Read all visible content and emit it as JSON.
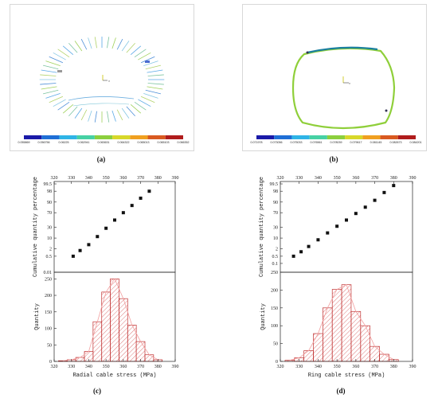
{
  "panels": {
    "a": {
      "label": "(a)",
      "colorbar_ticks": [
        "0.055869",
        "0.056756",
        "0.06225",
        "0.062941",
        "0.063631",
        "0.064322",
        "0.065013",
        "0.065103",
        "0.066352"
      ]
    },
    "b": {
      "label": "(b)",
      "colorbar_ticks": [
        "0.071978",
        "0.073056",
        "0.075033",
        "0.076561",
        "0.078039",
        "0.079617",
        "0.081145",
        "0.082673",
        "0.084201"
      ]
    },
    "c": {
      "label": "(c)"
    },
    "d": {
      "label": "(d)"
    }
  },
  "colorbar_colors": [
    "#1a1aa8",
    "#1f6fd6",
    "#2fb4e6",
    "#47d1a4",
    "#8ccf3e",
    "#d8d82a",
    "#f0a020",
    "#d95a20",
    "#b01c1c"
  ],
  "ring_colors": {
    "main": "#8fcf3a",
    "accent": "#1a7f9e"
  },
  "chart_data": [
    {
      "type": "scatter",
      "panel": "c-top",
      "x_top_ticks": [
        "320",
        "330",
        "340",
        "350",
        "360",
        "370",
        "380",
        "390"
      ],
      "y_tick_labels": [
        "0.01",
        "0.5",
        "2",
        "10",
        "30",
        "70",
        "90",
        "98",
        "99.5"
      ],
      "ylabel": "Cumulative quantity percentage",
      "xlim": [
        320,
        390
      ],
      "y_scale": "probability",
      "points": [
        {
          "x": 331,
          "y": 0.5
        },
        {
          "x": 335,
          "y": 1.5
        },
        {
          "x": 340,
          "y": 4
        },
        {
          "x": 345,
          "y": 12
        },
        {
          "x": 350,
          "y": 28
        },
        {
          "x": 355,
          "y": 50
        },
        {
          "x": 360,
          "y": 70
        },
        {
          "x": 365,
          "y": 85
        },
        {
          "x": 370,
          "y": 94
        },
        {
          "x": 375,
          "y": 98
        }
      ]
    },
    {
      "type": "bar",
      "panel": "c-bottom",
      "x_ticks": [
        "320",
        "330",
        "340",
        "350",
        "360",
        "370",
        "380",
        "390"
      ],
      "y_ticks": [
        "0",
        "50",
        "100",
        "150",
        "200",
        "250"
      ],
      "xlabel": "Radial cable stress (MPa)",
      "ylabel": "Quantity",
      "xlim": [
        320,
        390
      ],
      "ylim": [
        0,
        270
      ],
      "bin_width": 5,
      "bins": [
        {
          "x": 325,
          "value": 2
        },
        {
          "x": 330,
          "value": 5
        },
        {
          "x": 335,
          "value": 12
        },
        {
          "x": 340,
          "value": 30
        },
        {
          "x": 345,
          "value": 120
        },
        {
          "x": 350,
          "value": 210
        },
        {
          "x": 355,
          "value": 250
        },
        {
          "x": 360,
          "value": 190
        },
        {
          "x": 365,
          "value": 110
        },
        {
          "x": 370,
          "value": 60
        },
        {
          "x": 375,
          "value": 20
        },
        {
          "x": 380,
          "value": 5
        }
      ]
    },
    {
      "type": "scatter",
      "panel": "d-top",
      "x_top_ticks": [
        "320",
        "330",
        "340",
        "350",
        "360",
        "370",
        "380",
        "390"
      ],
      "y_tick_labels": [
        "0.1",
        "0.5",
        "2",
        "10",
        "30",
        "70",
        "90",
        "98",
        "99.5"
      ],
      "ylabel": "Cumulative quantity percentage",
      "xlim": [
        320,
        390
      ],
      "y_scale": "probability",
      "points": [
        {
          "x": 327,
          "y": 0.5
        },
        {
          "x": 331,
          "y": 1.2
        },
        {
          "x": 335,
          "y": 3
        },
        {
          "x": 340,
          "y": 8
        },
        {
          "x": 345,
          "y": 18
        },
        {
          "x": 350,
          "y": 33
        },
        {
          "x": 355,
          "y": 50
        },
        {
          "x": 360,
          "y": 68
        },
        {
          "x": 365,
          "y": 82
        },
        {
          "x": 370,
          "y": 92
        },
        {
          "x": 375,
          "y": 97.5
        },
        {
          "x": 380,
          "y": 99.3
        }
      ]
    },
    {
      "type": "bar",
      "panel": "d-bottom",
      "x_ticks": [
        "320",
        "330",
        "340",
        "350",
        "360",
        "370",
        "380",
        "390"
      ],
      "y_ticks": [
        "0",
        "50",
        "100",
        "150",
        "200",
        "250"
      ],
      "xlabel": "Ring cable stress (MPa)",
      "ylabel": "Quantity",
      "xlim": [
        320,
        390
      ],
      "ylim": [
        0,
        250
      ],
      "bin_width": 5,
      "bins": [
        {
          "x": 325,
          "value": 3
        },
        {
          "x": 330,
          "value": 10
        },
        {
          "x": 335,
          "value": 30
        },
        {
          "x": 340,
          "value": 78
        },
        {
          "x": 345,
          "value": 150
        },
        {
          "x": 350,
          "value": 202
        },
        {
          "x": 355,
          "value": 215
        },
        {
          "x": 360,
          "value": 140
        },
        {
          "x": 365,
          "value": 100
        },
        {
          "x": 370,
          "value": 42
        },
        {
          "x": 375,
          "value": 20
        },
        {
          "x": 380,
          "value": 5
        }
      ]
    }
  ]
}
